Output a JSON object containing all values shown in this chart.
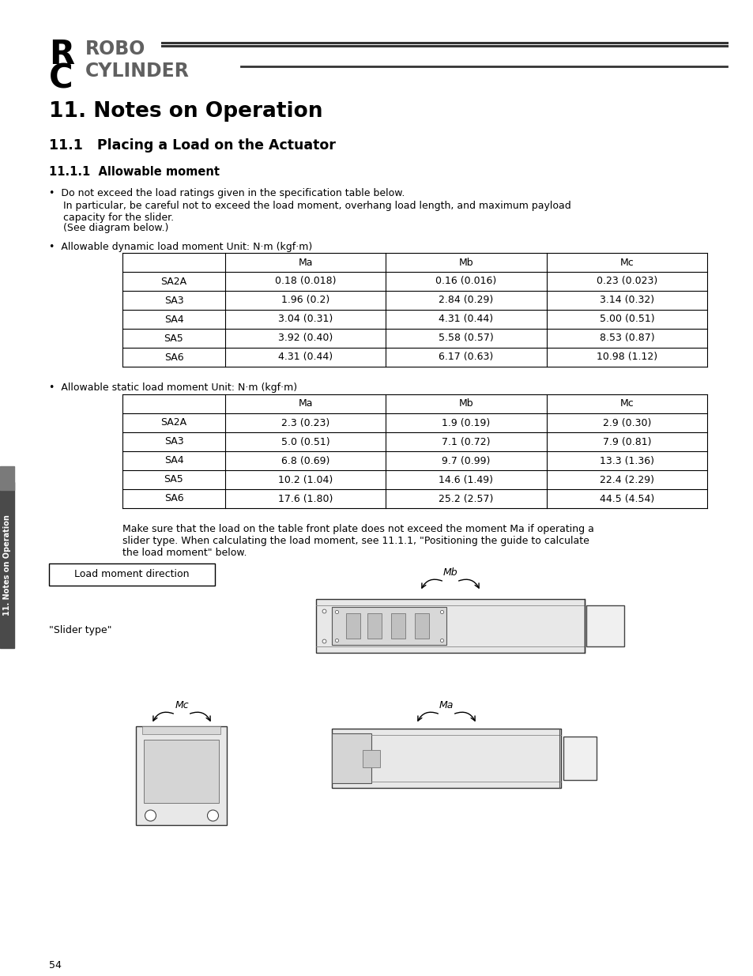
{
  "page_bg": "#ffffff",
  "title_main": "11. Notes on Operation",
  "title_sub1": "11.1   Placing a Load on the Actuator",
  "title_sub2": "11.1.1  Allowable moment",
  "bullet1_line1": "•  Do not exceed the load ratings given in the specification table below.",
  "bullet1_line2": "In particular, be careful not to exceed the load moment, overhang load length, and maximum payload",
  "bullet1_line3": "capacity for the slider.",
  "bullet1_line4": "(See diagram below.)",
  "table1_label": "•  Allowable dynamic load moment Unit: N·m (kgf·m)",
  "table1_headers": [
    "",
    "Ma",
    "Mb",
    "Mc"
  ],
  "table1_rows": [
    [
      "SA2A",
      "0.18 (0.018)",
      "0.16 (0.016)",
      "0.23 (0.023)"
    ],
    [
      "SA3",
      "1.96 (0.2)",
      "2.84 (0.29)",
      "3.14 (0.32)"
    ],
    [
      "SA4",
      "3.04 (0.31)",
      "4.31 (0.44)",
      "5.00 (0.51)"
    ],
    [
      "SA5",
      "3.92 (0.40)",
      "5.58 (0.57)",
      "8.53 (0.87)"
    ],
    [
      "SA6",
      "4.31 (0.44)",
      "6.17 (0.63)",
      "10.98 (1.12)"
    ]
  ],
  "table2_label": "•  Allowable static load moment Unit: N·m (kgf·m)",
  "table2_headers": [
    "",
    "Ma",
    "Mb",
    "Mc"
  ],
  "table2_rows": [
    [
      "SA2A",
      "2.3 (0.23)",
      "1.9 (0.19)",
      "2.9 (0.30)"
    ],
    [
      "SA3",
      "5.0 (0.51)",
      "7.1 (0.72)",
      "7.9 (0.81)"
    ],
    [
      "SA4",
      "6.8 (0.69)",
      "9.7 (0.99)",
      "13.3 (1.36)"
    ],
    [
      "SA5",
      "10.2 (1.04)",
      "14.6 (1.49)",
      "22.4 (2.29)"
    ],
    [
      "SA6",
      "17.6 (1.80)",
      "25.2 (2.57)",
      "44.5 (4.54)"
    ]
  ],
  "note_text1": "Make sure that the load on the table front plate does not exceed the moment Ma if operating a",
  "note_text2": "slider type. When calculating the load moment, see 11.1.1, \"Positioning the guide to calculate",
  "note_text3": "the load moment\" below.",
  "box_label": "Load moment direction",
  "slider_label": "\"Slider type\"",
  "page_number": "54",
  "sidebar_text": "11. Notes on Operation"
}
